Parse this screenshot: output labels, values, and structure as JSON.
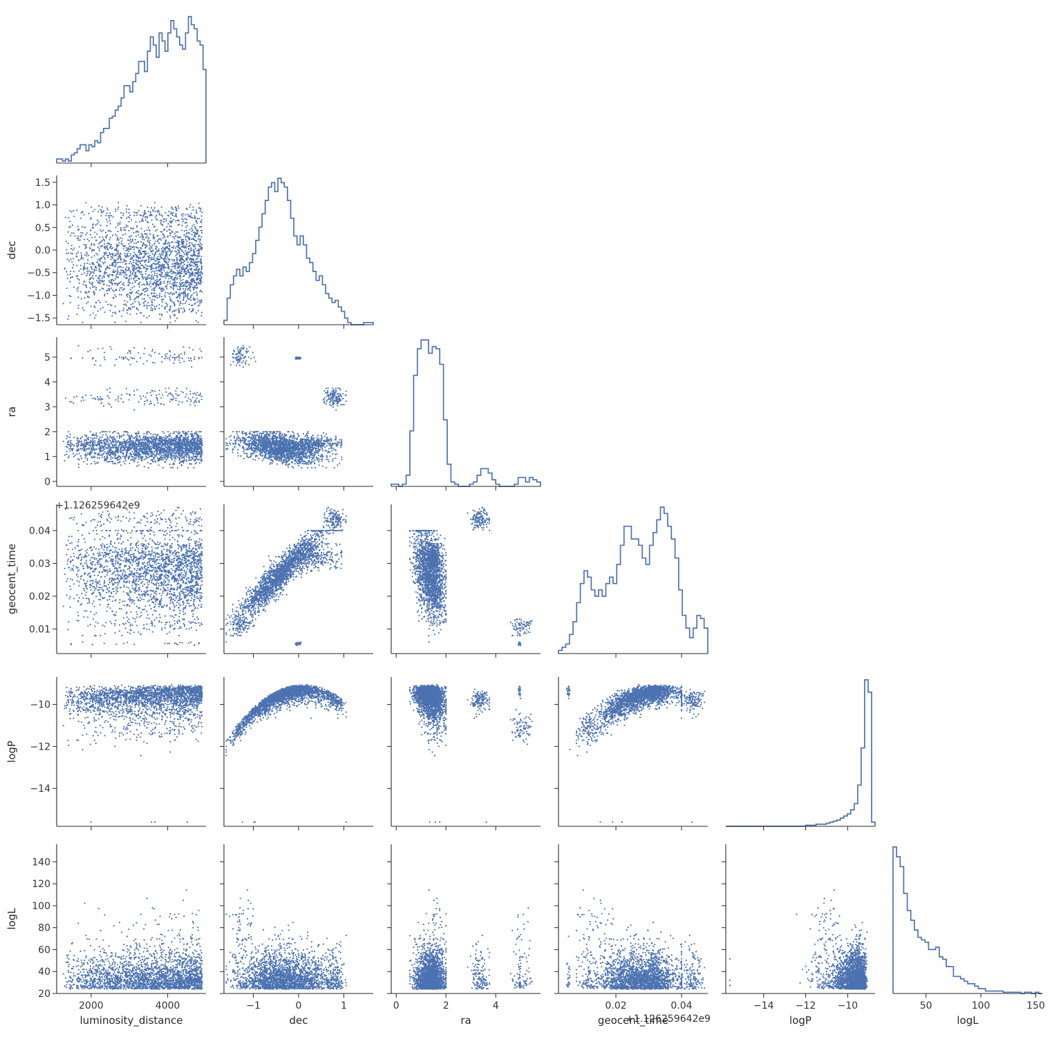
{
  "chart_data": {
    "type": "scatter",
    "layout": "corner-pairplot",
    "diagonal": "step-histogram",
    "offdiagonal": "scatter",
    "color": "#4c72b0",
    "title": "",
    "variables": [
      {
        "name": "luminosity_distance",
        "range": [
          1100,
          5000
        ],
        "ticks": [
          2000,
          4000
        ],
        "tick_labels": [
          "2000",
          "4000"
        ]
      },
      {
        "name": "dec",
        "range": [
          -1.65,
          1.65
        ],
        "ticks": [
          -1.5,
          -1.0,
          -0.5,
          0.0,
          0.5,
          1.0,
          1.5
        ],
        "tick_labels": [
          "−1.5",
          "−1.0",
          "−0.5",
          "0.0",
          "0.5",
          "1.0",
          "1.5"
        ],
        "xticks": [
          -1,
          0,
          1
        ],
        "xtick_labels": [
          "−1",
          "0",
          "1"
        ]
      },
      {
        "name": "ra",
        "range": [
          -0.2,
          5.8
        ],
        "ticks": [
          0,
          1,
          2,
          3,
          4,
          5
        ],
        "tick_labels": [
          "0",
          "1",
          "2",
          "3",
          "4",
          "5"
        ],
        "xticks": [
          0,
          2,
          4
        ],
        "xtick_labels": [
          "0",
          "2",
          "4"
        ]
      },
      {
        "name": "geocent_time",
        "range": [
          0.0025,
          0.048
        ],
        "ticks": [
          0.01,
          0.02,
          0.03,
          0.04
        ],
        "tick_labels": [
          "0.01",
          "0.02",
          "0.03",
          "0.04"
        ],
        "xticks": [
          0.02,
          0.04
        ],
        "xtick_labels": [
          "0.02",
          "0.04"
        ],
        "offset": "+1.126259642e9"
      },
      {
        "name": "logP",
        "range": [
          -15.8,
          -8.7
        ],
        "ticks": [
          -14,
          -12,
          -10
        ],
        "tick_labels": [
          "−14",
          "−12",
          "−10"
        ]
      },
      {
        "name": "logL",
        "range": [
          20,
          156
        ],
        "ticks": [
          20,
          40,
          60,
          80,
          100,
          120,
          140
        ],
        "tick_labels": [
          "20",
          "40",
          "60",
          "80",
          "100",
          "120",
          "140"
        ],
        "xticks": [
          50,
          100,
          150
        ],
        "xtick_labels": [
          "50",
          "100",
          "150"
        ]
      }
    ],
    "histograms": {
      "luminosity_distance": [
        2,
        2,
        1,
        2,
        1,
        4,
        5,
        7,
        9,
        9,
        6,
        9,
        8,
        11,
        10,
        15,
        17,
        17,
        22,
        23,
        26,
        28,
        32,
        38,
        38,
        35,
        40,
        44,
        50,
        50,
        45,
        55,
        62,
        58,
        52,
        64,
        60,
        55,
        64,
        70,
        66,
        62,
        58,
        56,
        64,
        72,
        68,
        66,
        60,
        58,
        46
      ],
      "dec": [
        2,
        12,
        18,
        22,
        25,
        22,
        26,
        24,
        28,
        32,
        38,
        44,
        50,
        56,
        62,
        64,
        60,
        66,
        64,
        62,
        56,
        48,
        40,
        36,
        40,
        36,
        30,
        28,
        24,
        20,
        22,
        18,
        14,
        12,
        10,
        11,
        8,
        6,
        3,
        1,
        0,
        0,
        0,
        0,
        1,
        1,
        1
      ],
      "ra": [
        1,
        1,
        0,
        1,
        5,
        25,
        50,
        62,
        66,
        66,
        60,
        63,
        62,
        55,
        30,
        10,
        2,
        1,
        0,
        0,
        0,
        1,
        2,
        5,
        8,
        8,
        6,
        3,
        1,
        0,
        0,
        0,
        0,
        1,
        4,
        4,
        2,
        4,
        3,
        2
      ],
      "geocent_time": [
        1,
        2,
        3,
        6,
        10,
        16,
        22,
        26,
        24,
        20,
        18,
        20,
        18,
        22,
        24,
        22,
        28,
        34,
        40,
        40,
        36,
        36,
        34,
        30,
        28,
        34,
        38,
        42,
        46,
        44,
        40,
        36,
        30,
        20,
        12,
        8,
        5,
        8,
        12,
        11,
        8
      ],
      "logP": [
        0,
        0,
        0,
        0,
        0,
        0,
        0,
        0,
        0,
        0,
        0,
        0,
        0,
        0,
        0,
        0,
        0,
        0,
        0,
        0,
        0,
        0,
        0,
        1,
        1,
        1,
        2,
        2,
        2,
        3,
        4,
        5,
        6,
        8,
        10,
        12,
        16,
        22,
        40,
        76,
        142,
        130,
        4
      ],
      "logL": [
        120,
        112,
        104,
        82,
        68,
        60,
        52,
        46,
        44,
        42,
        36,
        36,
        38,
        30,
        28,
        22,
        22,
        14,
        14,
        12,
        10,
        8,
        8,
        6,
        4,
        4,
        2,
        2,
        2,
        2,
        2,
        1,
        1,
        1,
        1,
        1,
        0,
        1,
        1,
        0,
        1,
        0
      ]
    },
    "legend": "none",
    "grid": false
  }
}
